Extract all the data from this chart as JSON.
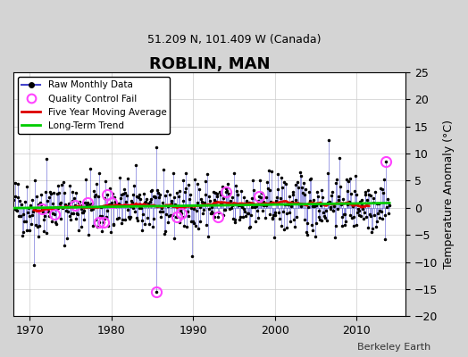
{
  "title": "ROBLIN, MAN",
  "subtitle": "51.209 N, 101.409 W (Canada)",
  "ylabel": "Temperature Anomaly (°C)",
  "attribution": "Berkeley Earth",
  "ylim": [
    -20,
    25
  ],
  "xlim": [
    1968,
    2016
  ],
  "yticks": [
    -20,
    -15,
    -10,
    -5,
    0,
    5,
    10,
    15,
    20,
    25
  ],
  "xticks": [
    1970,
    1980,
    1990,
    2000,
    2010
  ],
  "background_color": "#e8e8e8",
  "plot_bg_color": "#ffffff",
  "raw_line_color": "#4444cc",
  "raw_dot_color": "#000000",
  "qc_fail_color": "#ff44ff",
  "moving_avg_color": "#dd0000",
  "trend_color": "#00cc00",
  "seed": 42,
  "n_months": 552,
  "start_year": 1968.0
}
